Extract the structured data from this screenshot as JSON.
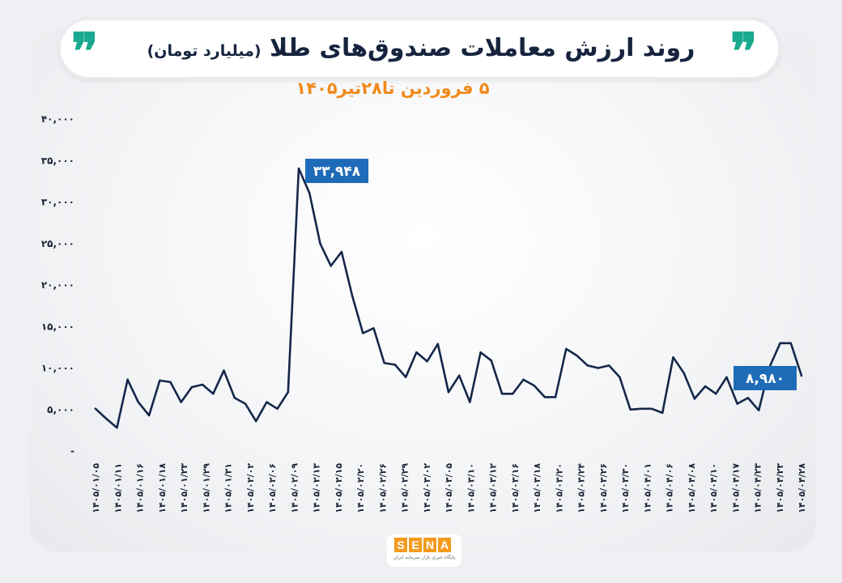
{
  "header": {
    "title": "روند ارزش معاملات صندوق‌های طلا",
    "unit": "(میلیارد تومان)",
    "subtitle": "۵ فروردین تا۲۸تیر۱۴۰۵",
    "quote_glyph": "❞"
  },
  "logo": {
    "letters": [
      "S",
      "E",
      "N",
      "A"
    ],
    "tagline": "پایگاه خبری بازار سرمایه ایران"
  },
  "colors": {
    "line": "#15274a",
    "callout": "#1e6bb8",
    "accent": "#18a98f",
    "subtitle": "#f08a1b",
    "title": "#17243f"
  },
  "chart_data": {
    "type": "line",
    "title": "روند ارزش معاملات صندوق‌های طلا (میلیارد تومان)",
    "subtitle": "۵ فروردین تا۲۸تیر۱۴۰۵",
    "ylim": [
      0,
      40000
    ],
    "yticks": [
      0,
      5000,
      10000,
      15000,
      20000,
      25000,
      30000,
      35000,
      40000
    ],
    "ytick_labels": [
      "-",
      "۵,۰۰۰",
      "۱۰,۰۰۰",
      "۱۵,۰۰۰",
      "۲۰,۰۰۰",
      "۲۵,۰۰۰",
      "۳۰,۰۰۰",
      "۳۵,۰۰۰",
      "۴۰,۰۰۰"
    ],
    "xtick_labels": [
      "۱۴۰۵/۰۱/۰۵",
      "۱۴۰۵/۰۱/۱۱",
      "۱۴۰۵/۰۱/۱۶",
      "۱۴۰۵/۰۱/۱۸",
      "۱۴۰۵/۰۱/۲۳",
      "۱۴۰۵/۰۱/۲۹",
      "۱۴۰۵/۰۱/۳۱",
      "۱۴۰۵/۰۲/۰۲",
      "۱۴۰۵/۰۲/۰۶",
      "۱۴۰۵/۰۲/۰۹",
      "۱۴۰۵/۰۲/۱۳",
      "۱۴۰۵/۰۲/۱۵",
      "۱۴۰۵/۰۲/۲۰",
      "۱۴۰۵/۰۲/۲۶",
      "۱۴۰۵/۰۲/۲۹",
      "۱۴۰۵/۰۳/۰۲",
      "۱۴۰۵/۰۳/۰۵",
      "۱۴۰۵/۰۳/۱۰",
      "۱۴۰۵/۰۳/۱۲",
      "۱۴۰۵/۰۳/۱۶",
      "۱۴۰۵/۰۳/۱۸",
      "۱۴۰۵/۰۳/۲۰",
      "۱۴۰۵/۰۳/۲۴",
      "۱۴۰۵/۰۳/۲۶",
      "۱۴۰۵/۰۳/۳۰",
      "۱۴۰۵/۰۴/۰۱",
      "۱۴۰۵/۰۴/۰۶",
      "۱۴۰۵/۰۴/۰۸",
      "۱۴۰۵/۰۴/۱۰",
      "۱۴۰۵/۰۴/۱۷",
      "۱۴۰۵/۰۴/۲۳",
      "۱۴۰۵/۰۴/۲۳",
      "۱۴۰۵/۰۴/۲۸"
    ],
    "values": [
      5000,
      3800,
      2700,
      8500,
      5800,
      4200,
      8400,
      8200,
      5800,
      7600,
      7900,
      6800,
      9600,
      6300,
      5600,
      3500,
      5800,
      5000,
      7000,
      33948,
      31000,
      24900,
      22200,
      23900,
      18600,
      14100,
      14700,
      10500,
      10300,
      8800,
      11800,
      10700,
      12800,
      7000,
      9000,
      5800,
      11800,
      10800,
      6800,
      6800,
      8500,
      7800,
      6400,
      6400,
      12200,
      11400,
      10200,
      9900,
      10200,
      8800,
      4900,
      5000,
      5000,
      4500,
      11200,
      9300,
      6200,
      7700,
      6800,
      8800,
      5600,
      6300,
      4800,
      10000,
      12900,
      12900,
      8980
    ],
    "annotations": [
      {
        "text": "۳۳,۹۴۸",
        "index": 19
      },
      {
        "text": "۸,۹۸۰",
        "index": 66
      }
    ],
    "grid": false,
    "legend": "none"
  }
}
